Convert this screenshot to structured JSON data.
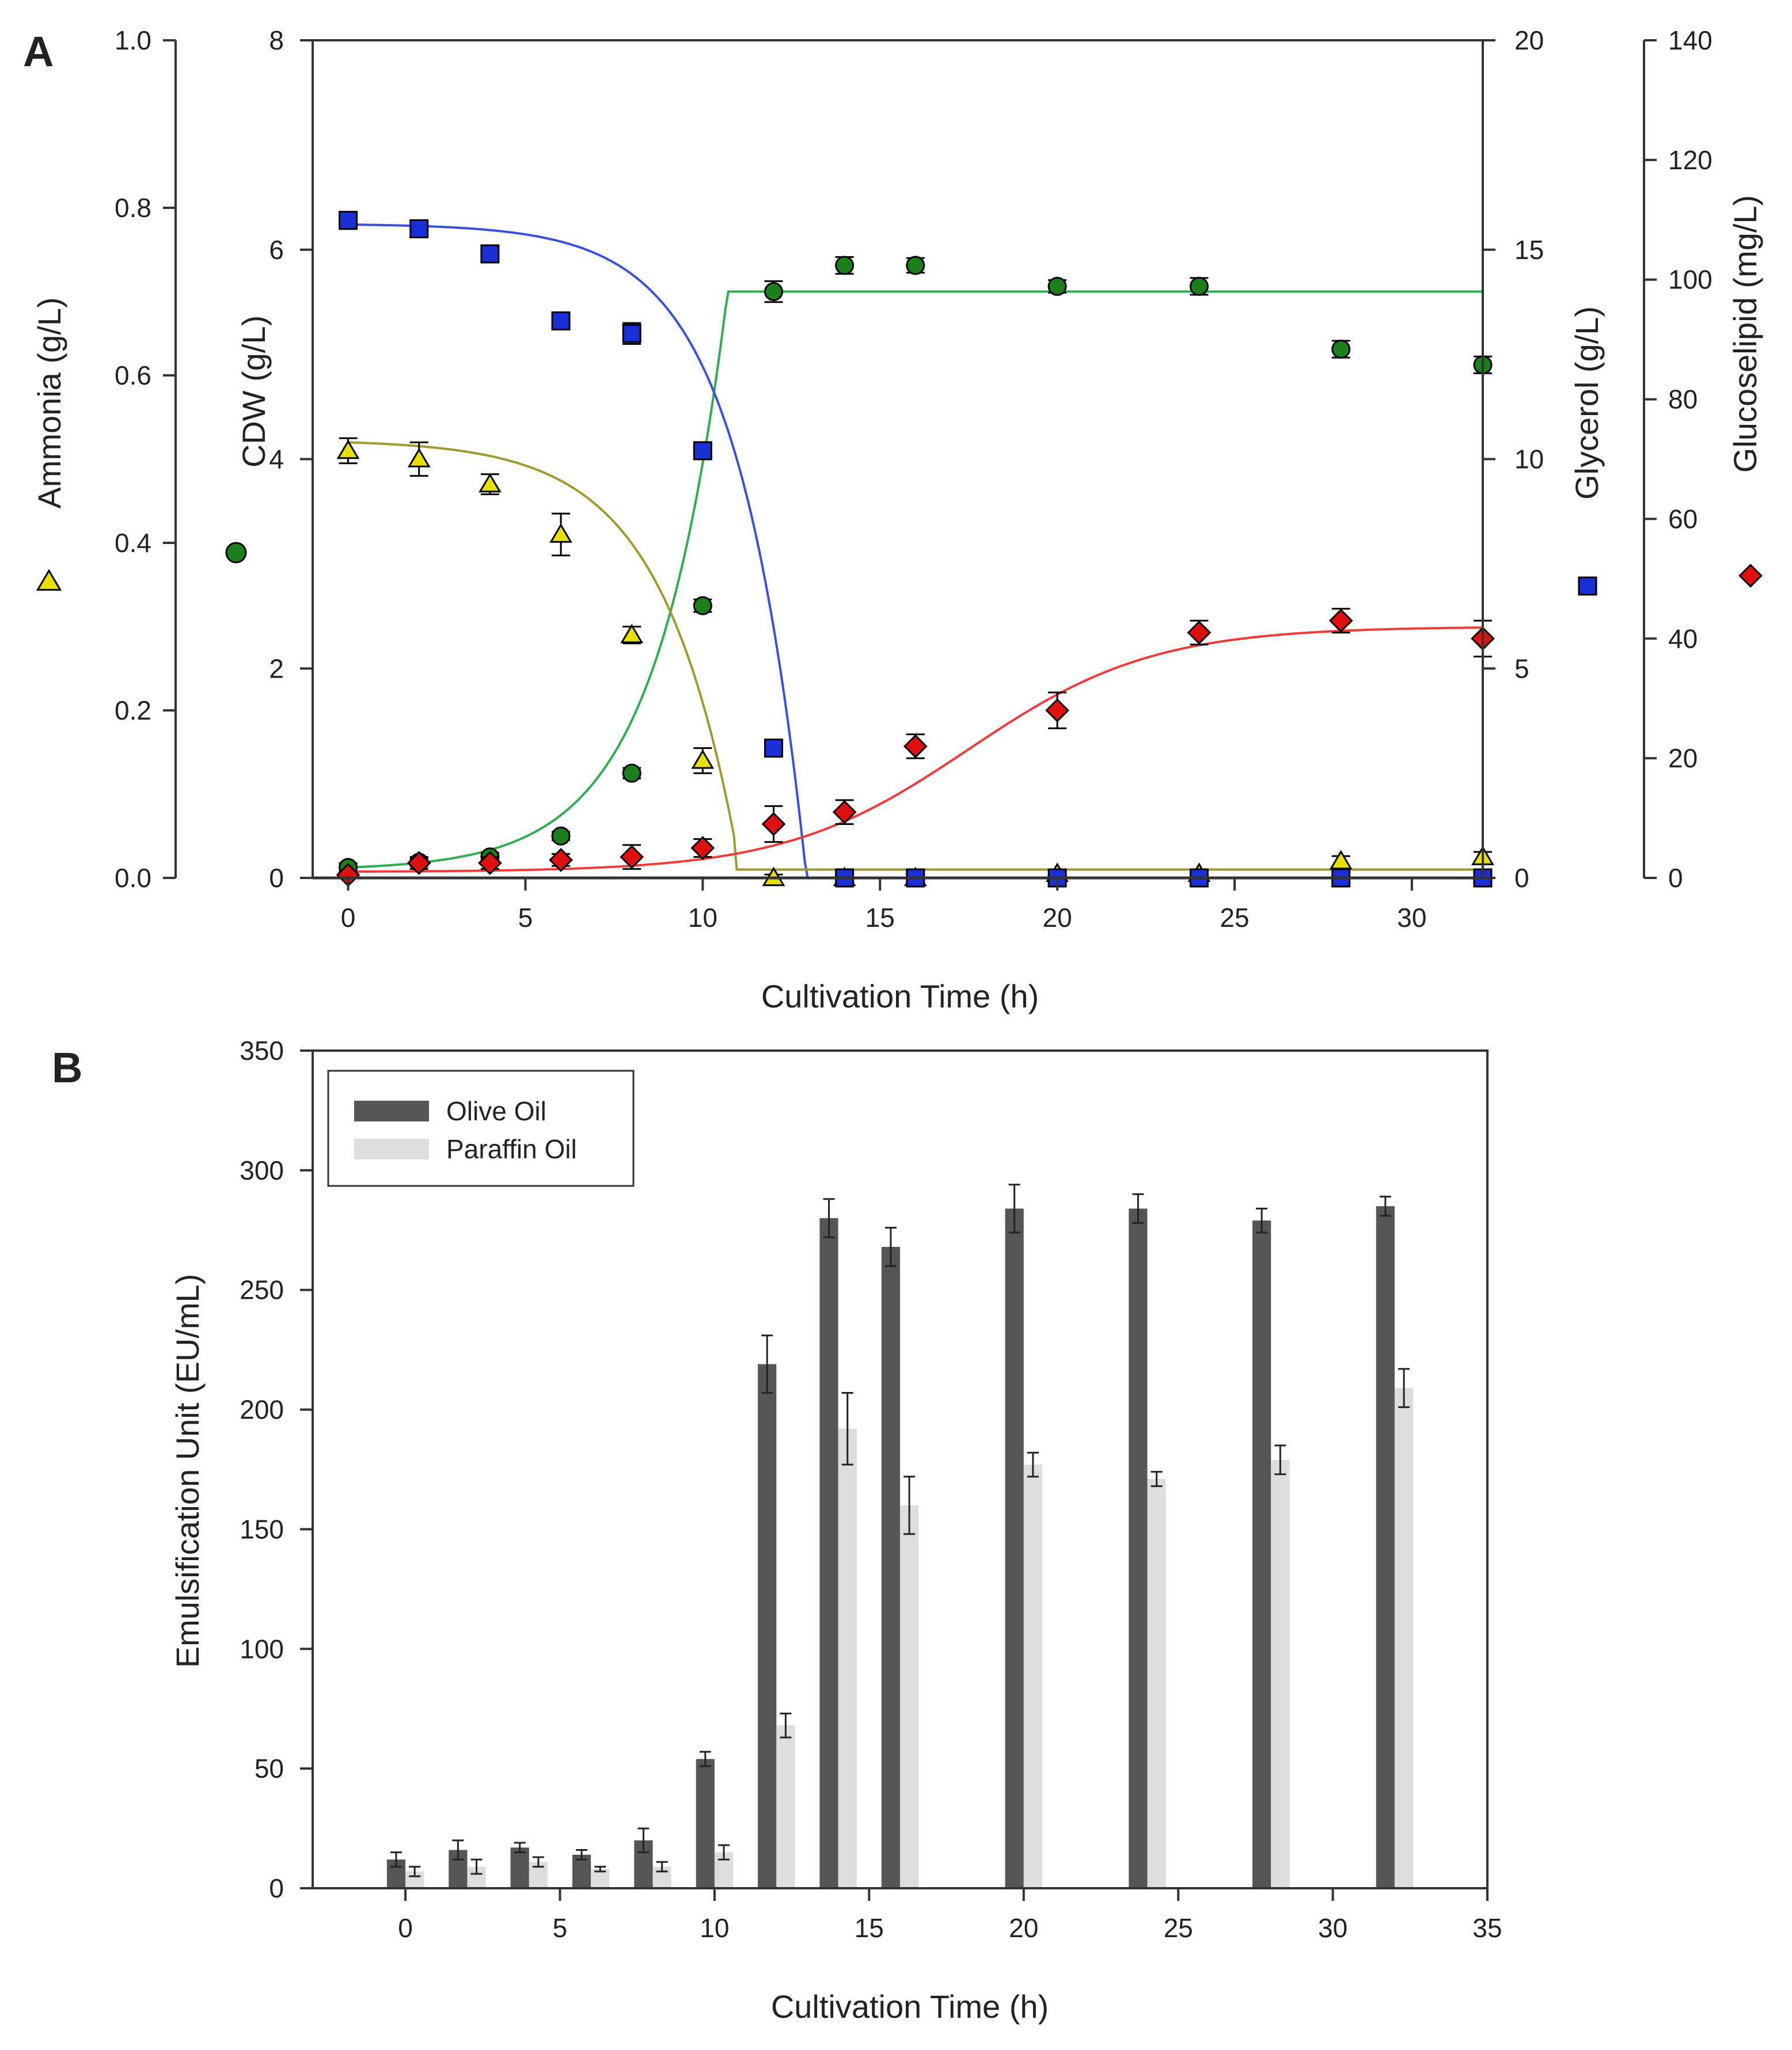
{
  "chart_data": [
    {
      "type": "scatter",
      "panel_label": "A",
      "xlabel": "Cultivation Time (h)",
      "xlim": [
        -1,
        32
      ],
      "x_ticks": [
        0,
        5,
        10,
        15,
        20,
        25,
        30
      ],
      "axes": {
        "ammonia": {
          "label": "Ammonia (g/L)",
          "ylim": [
            0,
            1.0
          ],
          "ticks": [
            "0.0",
            "0.2",
            "0.4",
            "0.6",
            "0.8",
            "1.0"
          ],
          "marker": "▲",
          "color": "#e8e000"
        },
        "cdw": {
          "label": "CDW (g/L)",
          "ylim": [
            0,
            8
          ],
          "ticks": [
            "0",
            "2",
            "4",
            "6",
            "8"
          ],
          "marker": "●",
          "color": "#1b7f1b"
        },
        "glycerol": {
          "label": "Glycerol (g/L)",
          "ylim": [
            0,
            20
          ],
          "ticks": [
            "0",
            "5",
            "10",
            "15",
            "20"
          ],
          "marker": "■",
          "color": "#1a2fd6"
        },
        "glucoselipid": {
          "label": "Glucoselipid (mg/L)",
          "ylim": [
            0,
            140
          ],
          "ticks": [
            "0",
            "20",
            "40",
            "60",
            "80",
            "100",
            "120",
            "140"
          ],
          "marker": "◆",
          "color": "#e01010"
        }
      },
      "series": [
        {
          "name": "Ammonia",
          "axis": "ammonia",
          "marker": "triangle",
          "color": "#e8e000",
          "fit_color": "#a09a2e",
          "x": [
            0,
            2,
            4,
            6,
            8,
            10,
            12,
            14,
            16,
            20,
            24,
            28,
            32
          ],
          "y": [
            0.51,
            0.5,
            0.47,
            0.41,
            0.29,
            0.14,
            0.0,
            0.0,
            0.0,
            0.005,
            0.005,
            0.02,
            0.025
          ],
          "err": [
            0.015,
            0.02,
            0.012,
            0.025,
            0.01,
            0.015,
            0.004,
            0.004,
            0.004,
            0.004,
            0.004,
            0.006,
            0.006
          ]
        },
        {
          "name": "CDW",
          "axis": "cdw",
          "marker": "circle",
          "color": "#1b7f1b",
          "fit_color": "#2fae4f",
          "x": [
            0,
            2,
            4,
            6,
            8,
            10,
            12,
            14,
            16,
            20,
            24,
            28,
            32
          ],
          "y": [
            0.1,
            0.15,
            0.2,
            0.4,
            1.0,
            2.6,
            5.6,
            5.85,
            5.85,
            5.65,
            5.65,
            5.05,
            4.9
          ],
          "err": [
            0.04,
            0.04,
            0.04,
            0.04,
            0.05,
            0.06,
            0.1,
            0.08,
            0.07,
            0.06,
            0.08,
            0.08,
            0.08
          ]
        },
        {
          "name": "Glycerol",
          "axis": "glycerol",
          "marker": "square",
          "color": "#1a2fd6",
          "fit_color": "#3a4fe0",
          "x": [
            0,
            2,
            4,
            6,
            8,
            10,
            12,
            14,
            16,
            20,
            24,
            28,
            32
          ],
          "y": [
            15.7,
            15.5,
            14.9,
            13.3,
            13.0,
            10.2,
            3.1,
            0,
            0,
            0,
            0,
            0,
            0
          ],
          "err": [
            0.2,
            0.2,
            0.15,
            0.2,
            0.25,
            0.2,
            0.2,
            0.05,
            0.05,
            0.05,
            0.05,
            0.05,
            0.05
          ]
        },
        {
          "name": "Glucoselipid",
          "axis": "glucoselipid",
          "marker": "diamond",
          "color": "#e01010",
          "fit_color": "#ef3a3a",
          "x": [
            0,
            2,
            4,
            6,
            8,
            10,
            12,
            14,
            16,
            20,
            24,
            28,
            32
          ],
          "y": [
            0.5,
            2.5,
            2.5,
            3,
            3.5,
            5,
            9,
            11,
            22,
            28,
            41,
            43,
            40
          ],
          "err": [
            0.5,
            1,
            1,
            1,
            2,
            1.5,
            3,
            2,
            2,
            3,
            2,
            2,
            3
          ]
        }
      ]
    },
    {
      "type": "bar",
      "panel_label": "B",
      "xlabel": "Cultivation Time (h)",
      "ylabel": "Emulsification Unit (EU/mL)",
      "xlim": [
        -3,
        35
      ],
      "ylim": [
        0,
        350
      ],
      "x_ticks": [
        "0",
        "5",
        "10",
        "15",
        "20",
        "25",
        "30",
        "35"
      ],
      "y_ticks": [
        "0",
        "50",
        "100",
        "150",
        "200",
        "250",
        "300",
        "350"
      ],
      "x": [
        0,
        2,
        4,
        6,
        8,
        10,
        12,
        14,
        16,
        20,
        24,
        28,
        32
      ],
      "series": [
        {
          "name": "Olive Oil",
          "color": "#555555",
          "values": [
            12,
            16,
            17,
            14,
            20,
            54,
            219,
            280,
            268,
            284,
            284,
            279,
            285
          ],
          "err": [
            3,
            4,
            2,
            2,
            5,
            3,
            12,
            8,
            8,
            10,
            6,
            5,
            4
          ]
        },
        {
          "name": "Paraffin Oil",
          "color": "#dddddd",
          "values": [
            7,
            9,
            11,
            8,
            9,
            15,
            68,
            192,
            160,
            177,
            171,
            179,
            209
          ],
          "err": [
            2,
            3,
            2,
            1,
            2,
            3,
            5,
            15,
            12,
            5,
            3,
            6,
            8
          ]
        }
      ],
      "legend": [
        "Olive Oil",
        "Paraffin Oil"
      ],
      "legend_position": "top-left"
    }
  ]
}
